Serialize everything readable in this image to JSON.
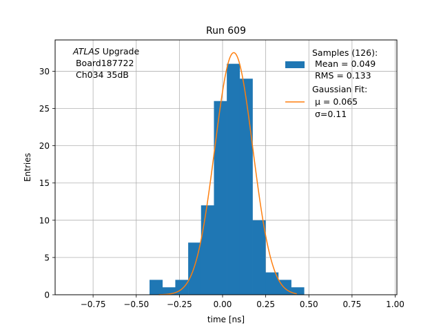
{
  "chart_data": {
    "type": "bar",
    "title": "Run 609",
    "xlabel": "time [ns]",
    "ylabel": "Entries",
    "xlim": [
      -0.97,
      1.01
    ],
    "ylim": [
      0,
      34.2
    ],
    "xticks": [
      -0.75,
      -0.5,
      -0.25,
      0.0,
      0.25,
      0.5,
      0.75,
      1.0
    ],
    "xtick_labels": [
      "−0.75",
      "−0.50",
      "−0.25",
      "0.00",
      "0.25",
      "0.50",
      "0.75",
      "1.00"
    ],
    "yticks": [
      0,
      5,
      10,
      15,
      20,
      25,
      30
    ],
    "ytick_labels": [
      "0",
      "5",
      "10",
      "15",
      "20",
      "25",
      "30"
    ],
    "grid": true,
    "legend_placement": "top-right",
    "annotation": {
      "experiment": "ATLAS",
      "experiment_suffix": " Upgrade",
      "line2": " Board187722",
      "line3": " Ch034 35dB"
    },
    "histogram": {
      "name": "Samples (126):",
      "stats": [
        " Mean = 0.049",
        " RMS = 0.133"
      ],
      "color": "#1f77b4",
      "bin_edges": [
        -0.423,
        -0.3484,
        -0.2738,
        -0.1992,
        -0.1246,
        -0.05,
        0.0246,
        0.0992,
        0.1738,
        0.2484,
        0.323,
        0.3976,
        0.4722
      ],
      "counts": [
        2,
        1,
        2,
        7,
        12,
        26,
        31,
        29,
        10,
        3,
        2,
        1
      ]
    },
    "fit": {
      "name": "Gaussian Fit:",
      "mu_label": " μ = 0.065",
      "sigma_label": " σ=0.11",
      "color": "#ff7f0e",
      "amplitude": 32.5,
      "mu": 0.065,
      "sigma": 0.11,
      "x_range": [
        -0.37,
        0.43
      ]
    }
  }
}
